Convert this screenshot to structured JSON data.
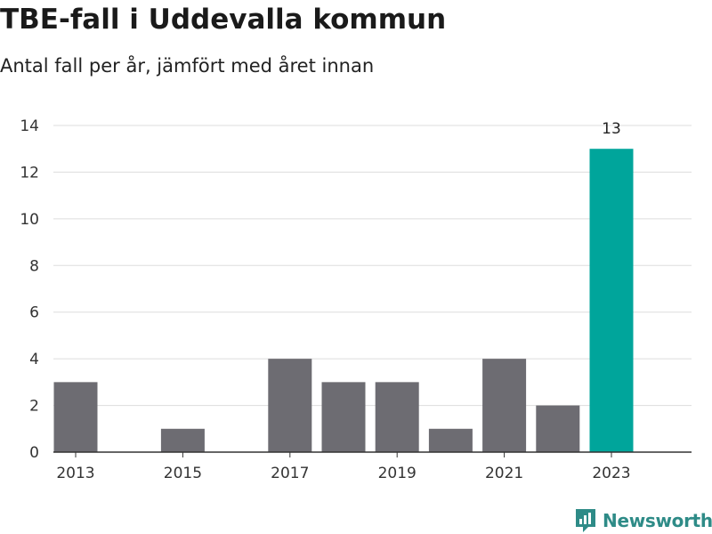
{
  "title": "TBE-fall i Uddevalla kommun",
  "subtitle": "Antal fall per år, jämfört med året innan",
  "brand": {
    "name": "Newsworthy",
    "color": "#2e8b87",
    "icon": "newsworthy-logo-icon"
  },
  "colors": {
    "bar": "#6d6c72",
    "highlight": "#00a59b",
    "grid": "#dddddd",
    "axis": "#333333"
  },
  "chart_data": {
    "type": "bar",
    "categories": [
      "2013",
      "2014",
      "2015",
      "2016",
      "2017",
      "2018",
      "2019",
      "2020",
      "2021",
      "2022",
      "2023"
    ],
    "values": [
      3,
      0,
      1,
      0,
      4,
      3,
      3,
      1,
      4,
      2,
      13
    ],
    "tick_labels_x": [
      "2013",
      "2015",
      "2017",
      "2019",
      "2021",
      "2023"
    ],
    "yticks": [
      0,
      2,
      4,
      6,
      8,
      10,
      12,
      14
    ],
    "ylim": [
      0,
      14
    ],
    "highlight_category": "2023",
    "data_labels": [
      {
        "category": "2023",
        "text": "13"
      }
    ],
    "xlabel": "",
    "ylabel": "",
    "grid": true,
    "legend": "none"
  }
}
